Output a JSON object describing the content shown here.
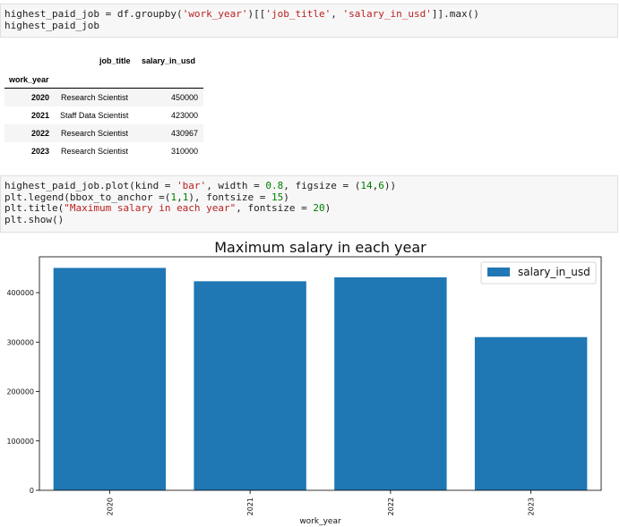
{
  "cell1": {
    "line1": {
      "a": "highest_paid_job = df.groupby(",
      "s1": "'work_year'",
      "b": ")[[",
      "s2": "'job_title'",
      "c": ", ",
      "s3": "'salary_in_usd'",
      "d": "]].max()"
    },
    "line2": "highest_paid_job"
  },
  "table": {
    "columns": [
      "job_title",
      "salary_in_usd"
    ],
    "index_name": "work_year",
    "rows": [
      {
        "year": "2020",
        "job_title": "Research Scientist",
        "salary": "450000"
      },
      {
        "year": "2021",
        "job_title": "Staff Data Scientist",
        "salary": "423000"
      },
      {
        "year": "2022",
        "job_title": "Research Scientist",
        "salary": "430967"
      },
      {
        "year": "2023",
        "job_title": "Research Scientist",
        "salary": "310000"
      }
    ]
  },
  "cell2": {
    "line1": {
      "a": "highest_paid_job.plot(kind = ",
      "s1": "'bar'",
      "b": ", width = ",
      "n1": "0.8",
      "c": ", figsize = (",
      "n2": "14",
      "d": ",",
      "n3": "6",
      "e": "))"
    },
    "line2": {
      "a": "plt.legend(bbox_to_anchor =(",
      "n1": "1",
      "b": ",",
      "n2": "1",
      "c": "), fontsize = ",
      "n3": "15",
      "d": ")"
    },
    "line3": {
      "a": "plt.title(",
      "s1": "\"Maximum salary in each year\"",
      "b": ", fontsize = ",
      "n1": "20",
      "c": ")"
    },
    "line4": "plt.show()"
  },
  "chart_data": {
    "type": "bar",
    "title": "Maximum salary in each year",
    "xlabel": "work_year",
    "ylabel": "",
    "categories": [
      "2020",
      "2021",
      "2022",
      "2023"
    ],
    "series": [
      {
        "name": "salary_in_usd",
        "values": [
          450000,
          423000,
          430967,
          310000
        ],
        "color": "#1f77b4"
      }
    ],
    "yticks": [
      0,
      100000,
      200000,
      300000,
      400000
    ],
    "ylim": [
      0,
      472500
    ],
    "legend": "top-right",
    "grid": false
  }
}
